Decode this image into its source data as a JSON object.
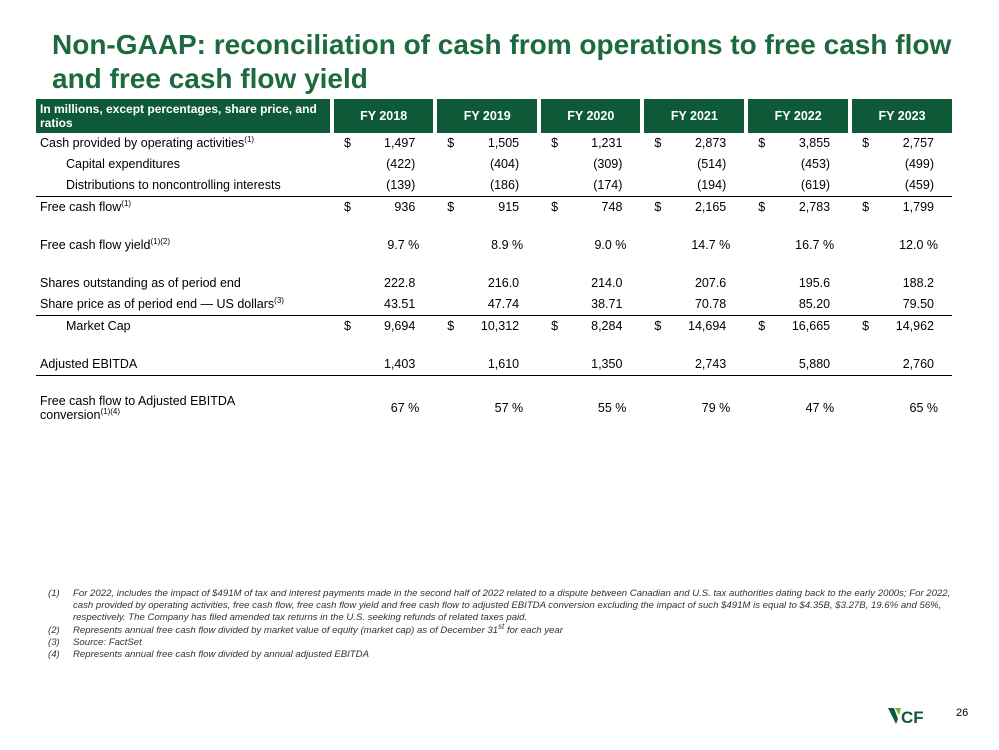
{
  "slide": {
    "title": "Non-GAAP: reconciliation of cash from operations to free cash flow and free cash flow yield",
    "page_number": "26",
    "logo_text": "CF",
    "accent_color": "#1e6a3f",
    "header_color": "#0e5a38"
  },
  "table": {
    "header_label": "In millions, except percentages, share price, and ratios",
    "years": [
      "FY 2018",
      "FY 2019",
      "FY 2020",
      "FY 2021",
      "FY 2022",
      "FY 2023"
    ],
    "rows": {
      "cfo": {
        "label": "Cash provided by operating activities",
        "sup": "(1)",
        "currency": "$",
        "values": [
          "1,497",
          "1,505",
          "1,231",
          "2,873",
          "3,855",
          "2,757"
        ]
      },
      "capex": {
        "label": "Capital expenditures",
        "values": [
          "(422)",
          "(404)",
          "(309)",
          "(514)",
          "(453)",
          "(499)"
        ]
      },
      "dist": {
        "label": "Distributions to noncontrolling interests",
        "values": [
          "(139)",
          "(186)",
          "(174)",
          "(194)",
          "(619)",
          "(459)"
        ]
      },
      "fcf": {
        "label": "Free cash flow",
        "sup": "(1)",
        "currency": "$",
        "values": [
          "936",
          "915",
          "748",
          "2,165",
          "2,783",
          "1,799"
        ]
      },
      "fcf_yield": {
        "label": "Free cash flow yield",
        "sup": "(1)(2)",
        "values": [
          "9.7 %",
          "8.9 %",
          "9.0 %",
          "14.7 %",
          "16.7 %",
          "12.0 %"
        ]
      },
      "shares": {
        "label": "Shares outstanding as of period end",
        "values": [
          "222.8",
          "216.0",
          "214.0",
          "207.6",
          "195.6",
          "188.2"
        ]
      },
      "price": {
        "label": "Share price as of period end — US dollars",
        "sup": "(3)",
        "values": [
          "43.51",
          "47.74",
          "38.71",
          "70.78",
          "85.20",
          "79.50"
        ]
      },
      "mcap": {
        "label": "Market Cap",
        "currency": "$",
        "values": [
          "9,694",
          "10,312",
          "8,284",
          "14,694",
          "16,665",
          "14,962"
        ]
      },
      "ebitda": {
        "label": "Adjusted EBITDA",
        "values": [
          "1,403",
          "1,610",
          "1,350",
          "2,743",
          "5,880",
          "2,760"
        ]
      },
      "conv": {
        "label_line1": "Free cash flow to Adjusted EBITDA",
        "label_line2": "conversion",
        "sup": "(1)(4)",
        "values": [
          "67 %",
          "57 %",
          "55 %",
          "79 %",
          "47 %",
          "65 %"
        ]
      }
    }
  },
  "footnotes": [
    {
      "num": "(1)",
      "text": "For 2022, includes the impact of $491M of tax and interest payments made in the second half of 2022 related to a dispute between Canadian and U.S. tax authorities dating back to the early 2000s; For 2022, cash provided by operating activities, free cash flow, free cash flow yield and free cash flow to adjusted EBITDA conversion excluding the impact of such $491M is equal to $4.35B, $3.27B, 19.6% and 56%, respectively. The Company has filed amended tax returns in the U.S. seeking refunds of related taxes paid."
    },
    {
      "num": "(2)",
      "text": "Represents annual free cash flow divided by market value of equity (market cap) as of December 31",
      "sup": "st",
      "text_after": " for each year"
    },
    {
      "num": "(3)",
      "text": "Source: FactSet"
    },
    {
      "num": "(4)",
      "text": "Represents annual free cash flow divided by annual adjusted EBITDA"
    }
  ]
}
